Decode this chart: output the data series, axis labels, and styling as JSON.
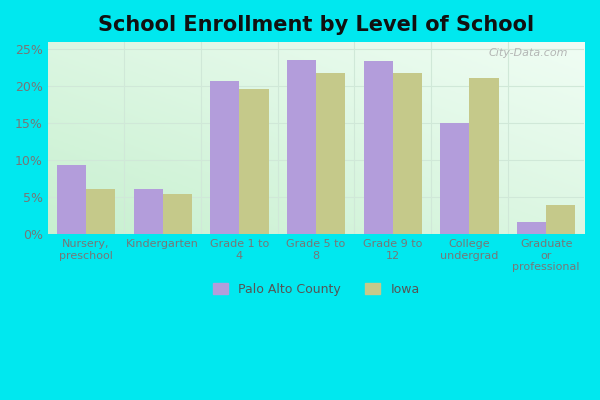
{
  "title": "School Enrollment by Level of School",
  "categories": [
    "Nursery,\npreschool",
    "Kindergarten",
    "Grade 1 to\n4",
    "Grade 5 to\n8",
    "Grade 9 to\n12",
    "College\nundergrad",
    "Graduate\nor\nprofessional"
  ],
  "palo_alto": [
    9.3,
    6.1,
    20.7,
    23.6,
    23.5,
    15.1,
    1.7
  ],
  "iowa": [
    6.1,
    5.4,
    19.6,
    21.8,
    21.8,
    21.2,
    4.0
  ],
  "palo_alto_color": "#b39ddb",
  "iowa_color": "#c5c98a",
  "background_outer": "#00e8ef",
  "background_inner_bottom_left": "#c8f0d0",
  "background_inner_top_right": "#f0fdf4",
  "title_fontsize": 15,
  "ylim": [
    0,
    26
  ],
  "yticks": [
    0,
    5,
    10,
    15,
    20,
    25
  ],
  "bar_width": 0.38,
  "legend_label_palo": "Palo Alto County",
  "legend_label_iowa": "Iowa",
  "watermark": "City-Data.com",
  "tick_color": "#777777",
  "grid_color": "#d0e8d8"
}
